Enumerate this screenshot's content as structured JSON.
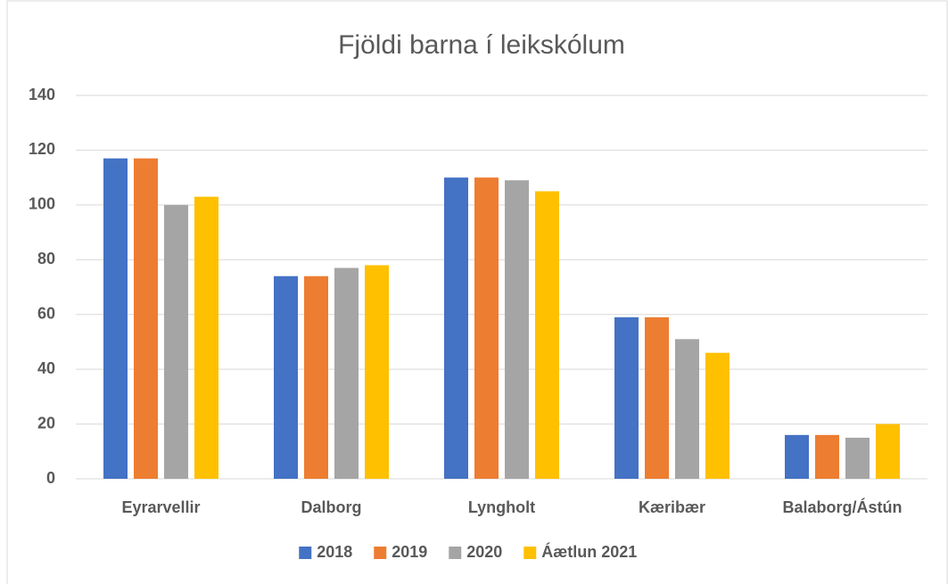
{
  "chart_data": {
    "type": "bar",
    "title": "Fjöldi barna í leikskólum",
    "categories": [
      "Eyrarvellir",
      "Dalborg",
      "Lyngholt",
      "Kæribær",
      "Balaborg/Ástún"
    ],
    "series": [
      {
        "name": "2018",
        "color": "#4472c4",
        "values": [
          117,
          74,
          110,
          59,
          16
        ]
      },
      {
        "name": "2019",
        "color": "#ed7d31",
        "values": [
          117,
          74,
          110,
          59,
          16
        ]
      },
      {
        "name": "2020",
        "color": "#a5a5a5",
        "values": [
          100,
          77,
          109,
          51,
          15
        ]
      },
      {
        "name": "Áætlun 2021",
        "color": "#ffc000",
        "values": [
          103,
          78,
          105,
          46,
          20
        ]
      }
    ],
    "ylim": [
      0,
      140
    ],
    "yticks": [
      0,
      20,
      40,
      60,
      80,
      100,
      120,
      140
    ],
    "grid": true,
    "legend": "bottom"
  }
}
